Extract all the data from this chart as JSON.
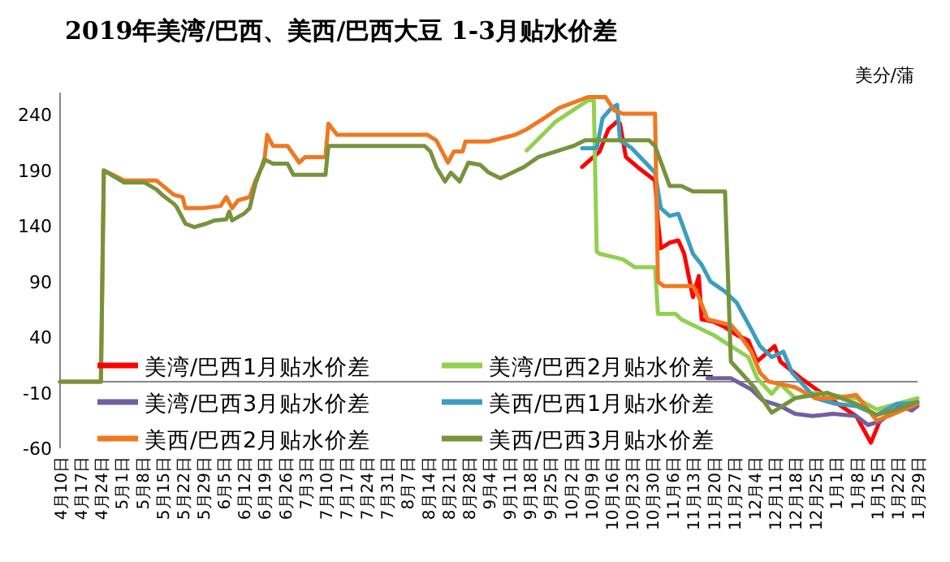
{
  "chart_data": {
    "type": "line",
    "title": "2019年美湾/巴西、美西/巴西大豆 1-3月贴水价差",
    "ylabel": "美分/蒲",
    "legend": "bottom left",
    "xlim": [
      "2019-04-10",
      "2020-01-29"
    ],
    "xticks": [
      {
        "value": "2019-04-10",
        "label": "4月10日"
      },
      {
        "value": "2019-04-17",
        "label": "4月17日"
      },
      {
        "value": "2019-04-24",
        "label": "4月24日"
      },
      {
        "value": "2019-05-01",
        "label": "5月1日"
      },
      {
        "value": "2019-05-08",
        "label": "5月8日"
      },
      {
        "value": "2019-05-15",
        "label": "5月15日"
      },
      {
        "value": "2019-05-22",
        "label": "5月22日"
      },
      {
        "value": "2019-05-29",
        "label": "5月29日"
      },
      {
        "value": "2019-06-05",
        "label": "6月5日"
      },
      {
        "value": "2019-06-12",
        "label": "6月12日"
      },
      {
        "value": "2019-06-19",
        "label": "6月19日"
      },
      {
        "value": "2019-06-26",
        "label": "6月26日"
      },
      {
        "value": "2019-07-03",
        "label": "7月3日"
      },
      {
        "value": "2019-07-10",
        "label": "7月10日"
      },
      {
        "value": "2019-07-17",
        "label": "7月17日"
      },
      {
        "value": "2019-07-24",
        "label": "7月24日"
      },
      {
        "value": "2019-07-31",
        "label": "7月31日"
      },
      {
        "value": "2019-08-07",
        "label": "8月7日"
      },
      {
        "value": "2019-08-14",
        "label": "8月14日"
      },
      {
        "value": "2019-08-21",
        "label": "8月21日"
      },
      {
        "value": "2019-08-28",
        "label": "8月28日"
      },
      {
        "value": "2019-09-04",
        "label": "9月4日"
      },
      {
        "value": "2019-09-11",
        "label": "9月11日"
      },
      {
        "value": "2019-09-18",
        "label": "9月18日"
      },
      {
        "value": "2019-09-25",
        "label": "9月25日"
      },
      {
        "value": "2019-10-02",
        "label": "10月2日"
      },
      {
        "value": "2019-10-09",
        "label": "10月9日"
      },
      {
        "value": "2019-10-16",
        "label": "10月16日"
      },
      {
        "value": "2019-10-23",
        "label": "10月23日"
      },
      {
        "value": "2019-10-30",
        "label": "10月30日"
      },
      {
        "value": "2019-11-06",
        "label": "11月6日"
      },
      {
        "value": "2019-11-13",
        "label": "11月13日"
      },
      {
        "value": "2019-11-20",
        "label": "11月20日"
      },
      {
        "value": "2019-11-27",
        "label": "11月27日"
      },
      {
        "value": "2019-12-04",
        "label": "12月4日"
      },
      {
        "value": "2019-12-11",
        "label": "12月11日"
      },
      {
        "value": "2019-12-18",
        "label": "12月18日"
      },
      {
        "value": "2019-12-25",
        "label": "12月25日"
      },
      {
        "value": "2020-01-01",
        "label": "1月1日"
      },
      {
        "value": "2020-01-08",
        "label": "1月8日"
      },
      {
        "value": "2020-01-15",
        "label": "1月15日"
      },
      {
        "value": "2020-01-22",
        "label": "1月22日"
      },
      {
        "value": "2020-01-29",
        "label": "1月29日"
      }
    ],
    "ylim": [
      -60,
      260
    ],
    "yticks": [
      -60,
      -10,
      40,
      90,
      140,
      190,
      240
    ],
    "series": [
      {
        "name": "美湾/巴西1月贴水价差",
        "color": "#ff0000",
        "x": [
          "2019-10-06",
          "2019-10-12",
          "2019-10-15",
          "2019-10-18",
          "2019-10-19",
          "2019-10-21",
          "2019-10-25",
          "2019-10-31",
          "2019-11-01",
          "2019-11-02",
          "2019-11-05",
          "2019-11-08",
          "2019-11-10",
          "2019-11-13",
          "2019-11-15",
          "2019-11-16",
          "2019-11-20",
          "2019-11-24",
          "2019-11-28",
          "2019-12-02",
          "2019-12-05",
          "2019-12-11",
          "2019-12-13",
          "2019-12-20",
          "2019-12-28",
          "2020-01-08",
          "2020-01-13",
          "2020-01-16"
        ],
        "values": [
          193,
          207,
          227,
          234,
          232,
          202,
          193,
          181,
          144,
          120,
          125,
          127,
          115,
          76,
          95,
          56,
          54,
          49,
          42,
          37,
          18,
          32,
          18,
          3,
          -12,
          -31,
          -55,
          -36
        ]
      },
      {
        "name": "美湾/巴西2月贴水价差",
        "color": "#92d050",
        "x": [
          "2019-09-17",
          "2019-09-27",
          "2019-10-08",
          "2019-10-10",
          "2019-10-11",
          "2019-10-12",
          "2019-10-20",
          "2019-10-24",
          "2019-10-31",
          "2019-11-01",
          "2019-11-07",
          "2019-11-09",
          "2019-11-20",
          "2019-11-26",
          "2019-12-02",
          "2019-12-05",
          "2019-12-10",
          "2019-12-13",
          "2019-12-18",
          "2019-12-25",
          "2020-01-08",
          "2020-01-15",
          "2020-01-22",
          "2020-01-29"
        ],
        "values": [
          208,
          234,
          253,
          253,
          117,
          115,
          110,
          103,
          103,
          61,
          61,
          56,
          42,
          32,
          22,
          3,
          -11,
          -2,
          -15,
          -10,
          -15,
          -25,
          -20,
          -15
        ]
      },
      {
        "name": "美湾/巴西3月贴水价差",
        "color": "#7060a0",
        "x": [
          "2019-11-18",
          "2019-11-26",
          "2019-12-03",
          "2019-12-07",
          "2019-12-13",
          "2019-12-18",
          "2019-12-24",
          "2019-12-31",
          "2020-01-08",
          "2020-01-12",
          "2020-01-16",
          "2020-01-23",
          "2020-01-27",
          "2020-01-29"
        ],
        "values": [
          3,
          3,
          -7,
          -17,
          -22,
          -29,
          -31,
          -29,
          -31,
          -39,
          -36,
          -22,
          -26,
          -22
        ]
      },
      {
        "name": "美西/巴西1月贴水价差",
        "color": "#3a9ec0",
        "x": [
          "2019-10-06",
          "2019-10-11",
          "2019-10-13",
          "2019-10-16",
          "2019-10-18",
          "2019-10-19",
          "2019-10-23",
          "2019-10-31",
          "2019-11-02",
          "2019-11-05",
          "2019-11-08",
          "2019-11-13",
          "2019-11-16",
          "2019-11-19",
          "2019-11-24",
          "2019-11-28",
          "2019-12-03",
          "2019-12-06",
          "2019-12-10",
          "2019-12-14",
          "2019-12-17",
          "2019-12-25",
          "2020-01-01",
          "2020-01-08",
          "2020-01-15",
          "2020-01-22",
          "2020-01-29"
        ],
        "values": [
          210,
          210,
          237,
          246,
          249,
          217,
          210,
          188,
          156,
          149,
          151,
          115,
          105,
          90,
          81,
          71,
          47,
          32,
          22,
          27,
          8,
          -15,
          -20,
          -22,
          -30,
          -20,
          -19
        ]
      },
      {
        "name": "美西/巴西2月贴水价差",
        "color": "#f07820",
        "x": [
          "2019-04-10",
          "2019-04-24",
          "2019-04-25",
          "2019-05-02",
          "2019-05-13",
          "2019-05-19",
          "2019-05-22",
          "2019-05-23",
          "2019-05-29",
          "2019-06-04",
          "2019-06-06",
          "2019-06-08",
          "2019-06-10",
          "2019-06-14",
          "2019-06-16",
          "2019-06-19",
          "2019-06-20",
          "2019-06-22",
          "2019-06-27",
          "2019-07-01",
          "2019-07-03",
          "2019-07-10",
          "2019-07-11",
          "2019-07-14",
          "2019-08-14",
          "2019-08-17",
          "2019-08-21",
          "2019-08-23",
          "2019-08-26",
          "2019-08-27",
          "2019-09-04",
          "2019-09-13",
          "2019-09-17",
          "2019-09-23",
          "2019-09-28",
          "2019-10-08",
          "2019-10-14",
          "2019-10-17",
          "2019-10-20",
          "2019-10-31",
          "2019-11-01",
          "2019-11-03",
          "2019-11-13",
          "2019-11-15",
          "2019-11-18",
          "2019-11-26",
          "2019-11-29",
          "2019-12-03",
          "2019-12-06",
          "2019-12-09",
          "2019-12-18",
          "2019-12-25",
          "2020-01-01",
          "2020-01-08",
          "2020-01-15",
          "2020-01-20",
          "2020-01-29"
        ],
        "values": [
          0,
          0,
          190,
          181,
          181,
          168,
          166,
          156,
          156,
          158,
          166,
          156,
          163,
          166,
          181,
          197,
          222,
          212,
          212,
          197,
          202,
          202,
          232,
          222,
          222,
          217,
          197,
          207,
          207,
          216,
          216,
          222,
          227,
          237,
          246,
          256,
          256,
          244,
          241,
          241,
          90,
          86,
          86,
          76,
          56,
          51,
          42,
          27,
          8,
          0,
          -5,
          -15,
          -15,
          -12,
          -35,
          -30,
          -20
        ]
      },
      {
        "name": "美西/巴西3月贴水价差",
        "color": "#77933c",
        "x": [
          "2019-04-10",
          "2019-04-24",
          "2019-04-25",
          "2019-05-02",
          "2019-05-09",
          "2019-05-13",
          "2019-05-15",
          "2019-05-19",
          "2019-05-20",
          "2019-05-23",
          "2019-05-26",
          "2019-05-30",
          "2019-06-02",
          "2019-06-06",
          "2019-06-07",
          "2019-06-08",
          "2019-06-12",
          "2019-06-14",
          "2019-06-16",
          "2019-06-19",
          "2019-06-22",
          "2019-06-27",
          "2019-06-29",
          "2019-07-10",
          "2019-07-11",
          "2019-08-13",
          "2019-08-15",
          "2019-08-17",
          "2019-08-20",
          "2019-08-22",
          "2019-08-25",
          "2019-08-28",
          "2019-09-01",
          "2019-09-04",
          "2019-09-08",
          "2019-09-16",
          "2019-09-21",
          "2019-10-03",
          "2019-10-07",
          "2019-10-29",
          "2019-10-31",
          "2019-11-05",
          "2019-11-09",
          "2019-11-13",
          "2019-11-24",
          "2019-11-26",
          "2019-12-04",
          "2019-12-10",
          "2019-12-18",
          "2019-12-29",
          "2020-01-08",
          "2020-01-15",
          "2020-01-22",
          "2020-01-29"
        ],
        "values": [
          0,
          0,
          190,
          179,
          179,
          173,
          168,
          160,
          157,
          142,
          139,
          142,
          145,
          146,
          153,
          145,
          151,
          156,
          178,
          200,
          196,
          196,
          186,
          186,
          212,
          212,
          207,
          193,
          180,
          188,
          180,
          197,
          195,
          188,
          183,
          193,
          202,
          212,
          217,
          217,
          212,
          176,
          176,
          171,
          171,
          18,
          -5,
          -28,
          -15,
          -10,
          -20,
          -30,
          -25,
          -18
        ]
      }
    ]
  }
}
